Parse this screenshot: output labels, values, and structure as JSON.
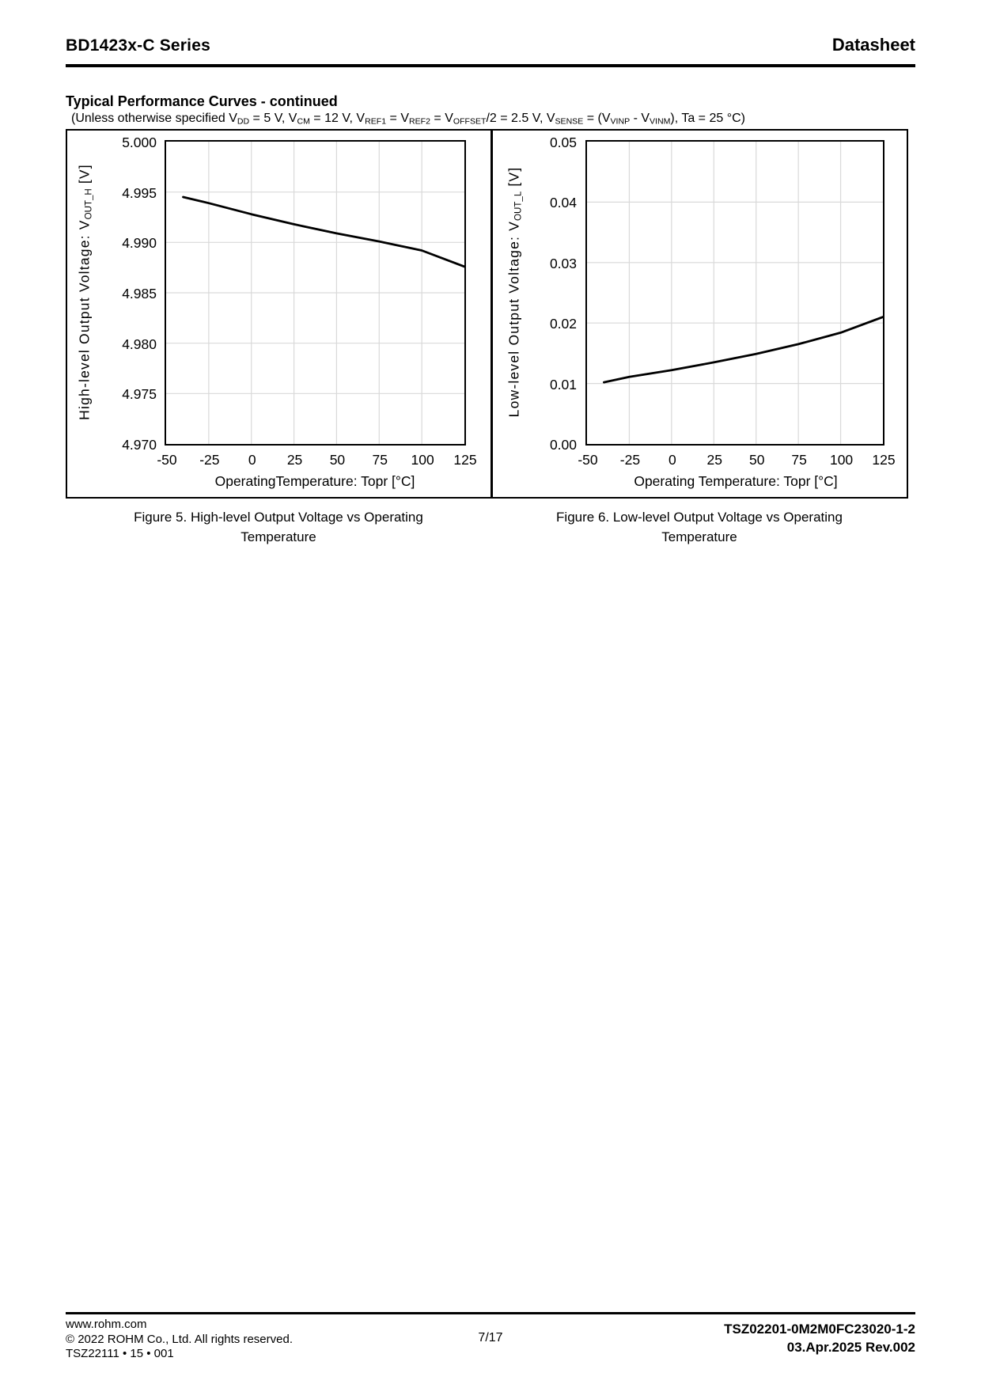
{
  "header": {
    "title": "BD1423x-C Series",
    "doc_type": "Datasheet"
  },
  "section": {
    "heading": "Typical Performance Curves - continued",
    "conditions": "(Unless otherwise specified VDD = 5 V, VCM = 12 V, VREF1 = VREF2 = VOFFSET/2 = 2.5 V, VSENSE = (VVINP - VVINM), Ta = 25 °C)",
    "conditions_rich": [
      {
        "t": "(Unless otherwise specified V"
      },
      {
        "s": "DD"
      },
      {
        "t": " = 5 V, V"
      },
      {
        "s": "CM"
      },
      {
        "t": " = 12 V, V"
      },
      {
        "s": "REF1"
      },
      {
        "t": " = V"
      },
      {
        "s": "REF2"
      },
      {
        "t": " = V"
      },
      {
        "s": "OFFSET"
      },
      {
        "t": "/2 = 2.5 V, V"
      },
      {
        "s": "SENSE"
      },
      {
        "t": " = (V"
      },
      {
        "s": "VINP"
      },
      {
        "t": " - V"
      },
      {
        "s": "VINM"
      },
      {
        "t": "), Ta = 25 °C)"
      }
    ]
  },
  "colors": {
    "grid": "#d9d9d9",
    "line": "#000000",
    "text": "#000000"
  },
  "chart_data": [
    {
      "type": "line",
      "title": "Figure 5. High-level Output Voltage vs Operating Temperature",
      "caption": "Figure 5. High-level Output Voltage vs Operating\nTemperature",
      "xlabel": "OperatingTemperature: Topr [°C]",
      "ylabel": "High-level Output Voltage: VOUT_H [V]",
      "ylabel_rich": [
        {
          "t": "High-level Output Voltage: V"
        },
        {
          "s": "OUT_H"
        },
        {
          "t": " [V]"
        }
      ],
      "xlim": [
        -50,
        125
      ],
      "ylim": [
        4.97,
        5.0
      ],
      "xticks": [
        -50,
        -25,
        0,
        25,
        50,
        75,
        100,
        125
      ],
      "yticks": [
        {
          "value": 5.0,
          "label": "5.000"
        },
        {
          "value": 4.995,
          "label": "4.995"
        },
        {
          "value": 4.99,
          "label": "4.990"
        },
        {
          "value": 4.985,
          "label": "4.985"
        },
        {
          "value": 4.98,
          "label": "4.980"
        },
        {
          "value": 4.975,
          "label": "4.975"
        },
        {
          "value": 4.97,
          "label": "4.970"
        }
      ],
      "grid": true,
      "legend": "none",
      "series": [
        {
          "name": "High-level Output Voltage",
          "points": [
            [
              -40,
              4.9945
            ],
            [
              -25,
              4.9939
            ],
            [
              0,
              4.9928
            ],
            [
              25,
              4.9918
            ],
            [
              50,
              4.9909
            ],
            [
              75,
              4.9901
            ],
            [
              100,
              4.9892
            ],
            [
              125,
              4.9876
            ]
          ]
        }
      ]
    },
    {
      "type": "line",
      "title": "Figure 6. Low-level Output Voltage vs Operating Temperature",
      "caption": "Figure 6. Low-level Output Voltage vs Operating\nTemperature",
      "xlabel": "Operating Temperature: Topr [°C]",
      "ylabel": "Low-level Output Voltage: VOUT_L [V]",
      "ylabel_rich": [
        {
          "t": "Low-level Output Voltage: V"
        },
        {
          "s": "OUT_L"
        },
        {
          "t": " [V]"
        }
      ],
      "xlim": [
        -50,
        125
      ],
      "ylim": [
        0.0,
        0.05
      ],
      "xticks": [
        -50,
        -25,
        0,
        25,
        50,
        75,
        100,
        125
      ],
      "yticks": [
        {
          "value": 0.05,
          "label": "0.05"
        },
        {
          "value": 0.04,
          "label": "0.04"
        },
        {
          "value": 0.03,
          "label": "0.03"
        },
        {
          "value": 0.02,
          "label": "0.02"
        },
        {
          "value": 0.01,
          "label": "0.01"
        },
        {
          "value": 0.0,
          "label": "0.00"
        }
      ],
      "grid": true,
      "legend": "none",
      "series": [
        {
          "name": "Low-level Output Voltage",
          "points": [
            [
              -40,
              0.0102
            ],
            [
              -25,
              0.0111
            ],
            [
              0,
              0.0122
            ],
            [
              25,
              0.0135
            ],
            [
              50,
              0.0149
            ],
            [
              75,
              0.0165
            ],
            [
              100,
              0.0184
            ],
            [
              125,
              0.021
            ]
          ]
        }
      ]
    }
  ],
  "footer": {
    "left_lines": [
      "www.rohm.com",
      "© 2022 ROHM Co., Ltd. All rights reserved.",
      "TSZ22111 • 15 • 001"
    ],
    "page": "7/17",
    "right_lines": [
      "TSZ02201-0M2M0FC23020-1-2",
      "03.Apr.2025 Rev.002"
    ]
  }
}
